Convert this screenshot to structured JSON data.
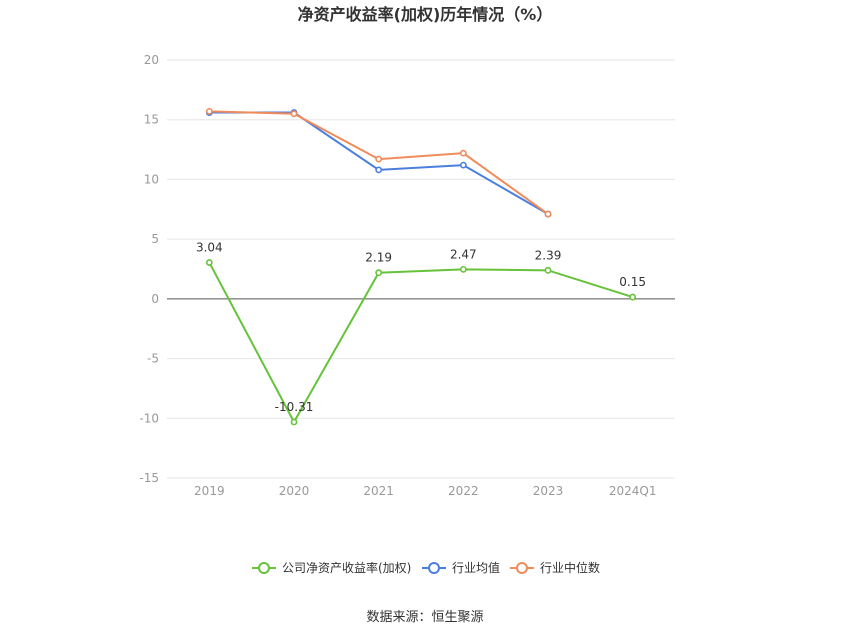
{
  "chart_data": {
    "type": "line",
    "title": "净资产收益率(加权)历年情况（%）",
    "categories": [
      "2019",
      "2020",
      "2021",
      "2022",
      "2023",
      "2024Q1"
    ],
    "ylim": [
      -15,
      20
    ],
    "yticks": [
      20,
      15,
      10,
      5,
      0,
      -5,
      -10,
      -15
    ],
    "grid": true,
    "legend_position": "bottom",
    "series": [
      {
        "name": "公司净资产收益率(加权)",
        "color": "#66c23a",
        "values": [
          3.04,
          -10.31,
          2.19,
          2.47,
          2.39,
          0.15
        ],
        "labels": [
          "3.04",
          "-10.31",
          "2.19",
          "2.47",
          "2.39",
          "0.15"
        ]
      },
      {
        "name": "行业均值",
        "color": "#4a7ee0",
        "values": [
          15.6,
          15.6,
          10.8,
          11.2,
          7.1,
          null
        ]
      },
      {
        "name": "行业中位数",
        "color": "#f08b5a",
        "values": [
          15.7,
          15.5,
          11.7,
          12.2,
          7.1,
          null
        ]
      }
    ]
  },
  "source": "数据来源：恒生聚源"
}
